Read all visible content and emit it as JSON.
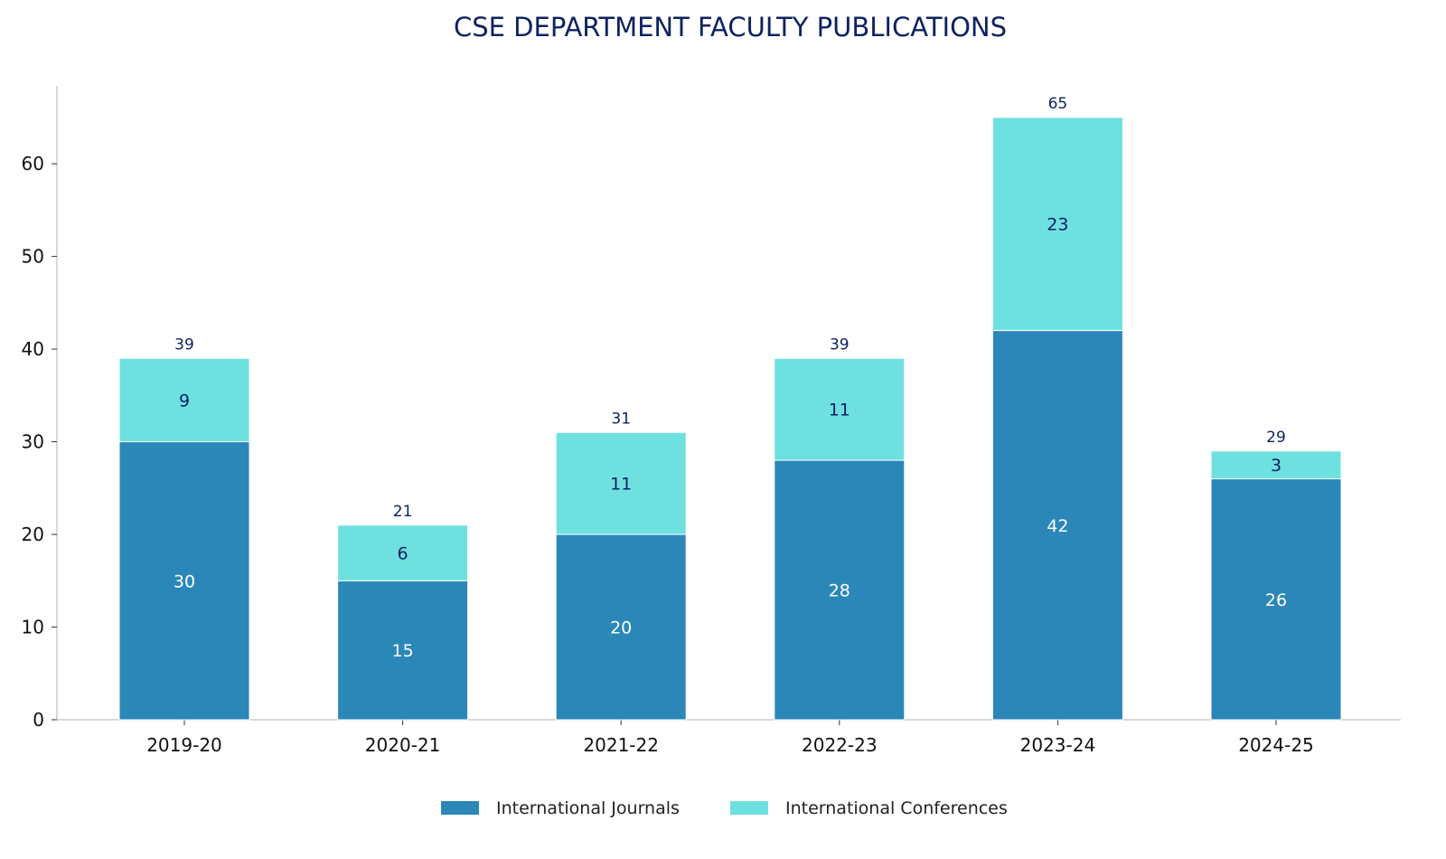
{
  "chart_data": {
    "type": "bar",
    "stacked": true,
    "title": "CSE DEPARTMENT FACULTY PUBLICATIONS",
    "xlabel": "",
    "ylabel": "",
    "categories": [
      "2019-20",
      "2020-21",
      "2021-22",
      "2022-23",
      "2023-24",
      "2024-25"
    ],
    "series": [
      {
        "name": "International Journals",
        "color": "#2b87b8",
        "values": [
          30,
          15,
          20,
          28,
          42,
          26
        ]
      },
      {
        "name": "International Conferences",
        "color": "#6fe0e0",
        "values": [
          9,
          6,
          11,
          11,
          23,
          3
        ]
      }
    ],
    "totals": [
      39,
      21,
      31,
      39,
      65,
      29
    ],
    "yticks": [
      0,
      10,
      20,
      30,
      40,
      50,
      60
    ],
    "ylim": [
      0,
      68.4
    ],
    "grid": false,
    "legend": "bottom-center"
  }
}
